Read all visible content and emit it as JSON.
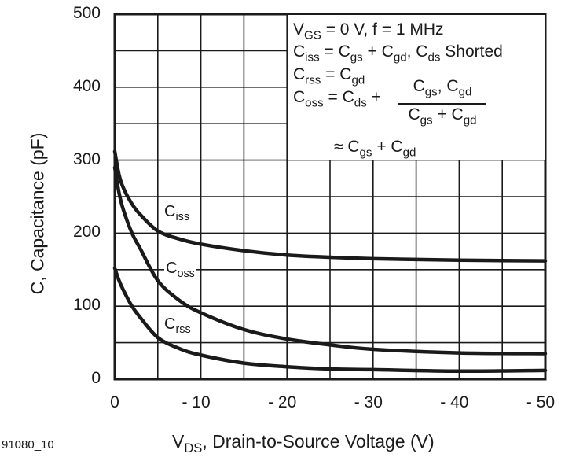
{
  "chart_data": {
    "type": "line",
    "xlabel": {
      "main": "V",
      "sub": "DS",
      "rest": ", Drain-to-Source Voltage (V)"
    },
    "ylabel": "C, Capacitance (pF)",
    "xlim": [
      0,
      -50
    ],
    "ylim": [
      0,
      500
    ],
    "grid": true,
    "x_ticks": [
      0,
      -10,
      -20,
      -30,
      -40,
      -50
    ],
    "x_tick_labels": [
      "0",
      "- 10",
      "- 20",
      "- 30",
      "- 40",
      "- 50"
    ],
    "y_ticks": [
      0,
      100,
      200,
      300,
      400,
      500
    ],
    "y_tick_labels": [
      "0",
      "100",
      "200",
      "300",
      "400",
      "500"
    ],
    "x": [
      0,
      -0.5,
      -1,
      -2,
      -3,
      -5,
      -7.5,
      -10,
      -15,
      -20,
      -25,
      -30,
      -40,
      -50
    ],
    "series": [
      {
        "name": "Ciss",
        "label_main": "C",
        "label_sub": "iss",
        "values": [
          312,
          280,
          262,
          240,
          225,
          203,
          192,
          185,
          176,
          170,
          167,
          165,
          163,
          162
        ]
      },
      {
        "name": "Coss",
        "label_main": "C",
        "label_sub": "oss",
        "values": [
          290,
          255,
          232,
          200,
          178,
          135,
          108,
          91,
          68,
          55,
          47,
          41,
          36,
          35
        ]
      },
      {
        "name": "Crss",
        "label_main": "C",
        "label_sub": "rss",
        "values": [
          152,
          135,
          122,
          100,
          84,
          57,
          42,
          33,
          22,
          17,
          14,
          13,
          11,
          12
        ]
      }
    ],
    "annotation": {
      "line1": {
        "a": "V",
        "a_sub": "GS",
        "b": " = 0 V, f = 1 MHz"
      },
      "line2": {
        "a": "C",
        "a_sub": "iss",
        "b": " = C",
        "b_sub": "gs",
        "c": " + C",
        "c_sub": "gd",
        "d": ", C",
        "d_sub": "ds",
        "e": " Shorted"
      },
      "line3": {
        "a": "C",
        "a_sub": "rss",
        "b": " = C",
        "b_sub": "gd"
      },
      "line4": {
        "a": "C",
        "a_sub": "oss",
        "b": " = C",
        "b_sub": "ds",
        "c": " +"
      },
      "fraction": {
        "num_a": "C",
        "num_a_sub": "gs",
        "num_b": ", C",
        "num_b_sub": "gd",
        "den_a": "C",
        "den_a_sub": "gs",
        "den_b": " + C",
        "den_b_sub": "gd"
      },
      "line5": {
        "a": "≈ C",
        "a_sub": "gs",
        "b": " + C",
        "b_sub": "gd"
      }
    },
    "figure_id": "91080_10",
    "line_color": "#1a1a1a"
  }
}
